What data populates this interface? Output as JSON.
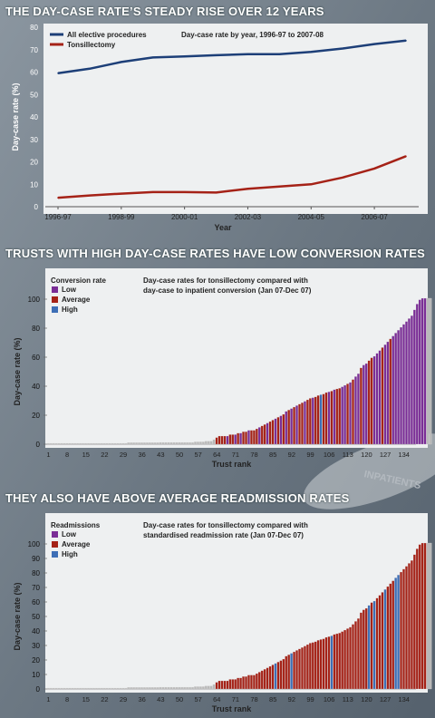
{
  "headings": {
    "h1": "THE DAY-CASE RATE’S STEADY RISE OVER 12 YEARS",
    "h2": "TRUSTS WITH HIGH DAY-CASE RATES HAVE LOW CONVERSION RATES",
    "h3": "THEY ALSO HAVE ABOVE AVERAGE READMISSION RATES"
  },
  "watermark_text": "INPATIENTS",
  "colors": {
    "background": "#6f7b86",
    "panel": "#eef0f1",
    "heading": "#ffffff",
    "navy": "#1d3f78",
    "red": "#a52217",
    "purple": "#7a2d96",
    "blue": "#3d6eb6",
    "gray_bar": "#b9b9b9"
  },
  "chart_data": [
    {
      "type": "line",
      "subtitle": "Day-case rate by year, 1996-97 to 2007-08",
      "xlabel": "Year",
      "ylabel": "Day-case rate (%)",
      "ylim": [
        0,
        80
      ],
      "yticks": [
        0,
        10,
        20,
        30,
        40,
        50,
        60,
        70,
        80
      ],
      "xtick_labels": [
        "1996-97",
        "1998-99",
        "2000-01",
        "2002-03",
        "2004-05",
        "2006-07"
      ],
      "x": [
        0,
        1,
        2,
        3,
        4,
        5,
        6,
        7,
        8,
        9,
        10,
        11
      ],
      "grid": false,
      "legend_position": "top-left",
      "series": [
        {
          "name": "All elective procedures",
          "color": "#1d3f78",
          "values": [
            59.5,
            61.5,
            64.5,
            66.5,
            67,
            67.5,
            68,
            68,
            69,
            70.5,
            72.5,
            74
          ]
        },
        {
          "name": "Tonsillectomy",
          "color": "#a52217",
          "values": [
            4,
            5,
            5.8,
            6.5,
            6.5,
            6.3,
            8,
            9,
            10,
            13,
            17,
            22.5
          ]
        }
      ]
    },
    {
      "type": "bar",
      "subtitle_lines": [
        "Day-case rates for tonsillectomy compared with",
        "day-case to inpatient conversion (Jan 07-Dec 07)"
      ],
      "legend_title": "Conversion rate",
      "legend_position": "top-left",
      "legend": [
        {
          "label": "Low",
          "color": "#7a2d96"
        },
        {
          "label": "Average",
          "color": "#a52217"
        },
        {
          "label": "High",
          "color": "#3d6eb6"
        }
      ],
      "xlabel": "Trust rank",
      "ylabel": "Day-case rate (%)",
      "ylim": [
        0,
        100
      ],
      "yticks": [
        0,
        20,
        40,
        60,
        80,
        100
      ],
      "xtick_labels": [
        "1",
        "8",
        "15",
        "22",
        "29",
        "36",
        "43",
        "50",
        "57",
        "64",
        "71",
        "78",
        "85",
        "92",
        "99",
        "106",
        "113",
        "120",
        "127",
        "134"
      ],
      "n_bars": 138,
      "values": [
        0,
        0,
        0,
        0,
        0,
        0,
        0,
        0,
        0,
        0,
        0,
        0,
        0,
        0,
        0,
        0,
        0,
        0,
        0,
        0,
        0,
        0,
        0,
        0,
        0,
        0,
        0,
        0,
        0,
        0,
        0.5,
        0.5,
        0.5,
        0.5,
        0.5,
        0.5,
        0.5,
        0.5,
        0.5,
        0.5,
        0.5,
        0.5,
        0.6,
        0.6,
        0.6,
        0.6,
        0.6,
        0.6,
        0.6,
        0.6,
        0.6,
        0.6,
        0.6,
        0.6,
        0.6,
        1,
        1,
        1,
        1,
        1.5,
        1.5,
        1.5,
        2.5,
        4,
        5,
        5,
        5,
        5,
        6,
        6,
        6,
        7,
        7,
        8,
        8,
        9,
        9,
        9,
        10,
        11,
        12,
        13,
        14,
        15,
        16,
        17,
        18,
        19,
        20,
        22,
        23,
        24,
        25,
        26,
        27,
        28,
        29,
        30,
        31,
        31.5,
        32,
        33,
        33.5,
        34,
        35,
        35.5,
        36,
        37,
        37.5,
        38,
        39,
        40,
        41,
        42,
        44,
        46,
        48,
        52,
        54,
        55,
        57,
        59,
        60,
        62,
        64,
        66,
        68,
        70,
        72,
        74,
        76,
        78,
        80,
        82,
        84,
        86,
        88,
        92,
        96,
        99,
        100,
        100,
        100,
        100
      ],
      "categories_colors": [
        "gray",
        "gray",
        "gray",
        "gray",
        "gray",
        "gray",
        "gray",
        "gray",
        "gray",
        "gray",
        "gray",
        "gray",
        "gray",
        "gray",
        "gray",
        "gray",
        "gray",
        "gray",
        "gray",
        "gray",
        "gray",
        "gray",
        "gray",
        "gray",
        "gray",
        "gray",
        "gray",
        "gray",
        "gray",
        "gray",
        "gray",
        "gray",
        "gray",
        "gray",
        "gray",
        "gray",
        "gray",
        "gray",
        "gray",
        "gray",
        "gray",
        "gray",
        "gray",
        "gray",
        "gray",
        "gray",
        "gray",
        "gray",
        "gray",
        "gray",
        "gray",
        "gray",
        "gray",
        "gray",
        "gray",
        "gray",
        "gray",
        "gray",
        "gray",
        "gray",
        "gray",
        "gray",
        "gray",
        "red",
        "red",
        "red",
        "red",
        "purple",
        "red",
        "red",
        "purple",
        "red",
        "purple",
        "red",
        "red",
        "purple",
        "red",
        "red",
        "red",
        "purple",
        "red",
        "red",
        "purple",
        "red",
        "red",
        "purple",
        "red",
        "purple",
        "red",
        "purple",
        "red",
        "purple",
        "red",
        "purple",
        "red",
        "red",
        "purple",
        "red",
        "red",
        "purple",
        "red",
        "red",
        "blue",
        "red",
        "red",
        "purple",
        "red",
        "purple",
        "red",
        "red",
        "purple",
        "purple",
        "red",
        "purple",
        "red",
        "purple",
        "purple",
        "red",
        "purple",
        "purple",
        "red",
        "red",
        "purple",
        "purple",
        "purple",
        "red",
        "purple",
        "purple",
        "red",
        "purple",
        "purple",
        "purple",
        "purple",
        "purple",
        "purple",
        "purple",
        "purple",
        "purple",
        "purple",
        "purple",
        "purple",
        "purple"
      ]
    },
    {
      "type": "bar",
      "subtitle_lines": [
        "Day-case rates for tonsillectomy compared with",
        "standardised readmission rate (Jan 07-Dec 07)"
      ],
      "legend_title": "Readmissions",
      "legend_position": "top-left",
      "legend": [
        {
          "label": "Low",
          "color": "#7a2d96"
        },
        {
          "label": "Average",
          "color": "#a52217"
        },
        {
          "label": "High",
          "color": "#3d6eb6"
        }
      ],
      "xlabel": "Trust rank",
      "ylabel": "Day-case rate (%)",
      "ylim": [
        0,
        100
      ],
      "yticks": [
        0,
        10,
        20,
        30,
        40,
        50,
        60,
        70,
        80,
        90,
        100
      ],
      "xtick_labels": [
        "1",
        "8",
        "15",
        "22",
        "29",
        "36",
        "43",
        "50",
        "57",
        "64",
        "71",
        "78",
        "85",
        "92",
        "99",
        "106",
        "113",
        "120",
        "127",
        "134"
      ],
      "n_bars": 138,
      "values": [
        0,
        0,
        0,
        0,
        0,
        0,
        0,
        0,
        0,
        0,
        0,
        0,
        0,
        0,
        0,
        0,
        0,
        0,
        0,
        0,
        0,
        0,
        0,
        0,
        0,
        0,
        0,
        0,
        0,
        0,
        0.5,
        0.5,
        0.5,
        0.5,
        0.5,
        0.5,
        0.5,
        0.5,
        0.5,
        0.5,
        0.5,
        0.5,
        0.6,
        0.6,
        0.6,
        0.6,
        0.6,
        0.6,
        0.6,
        0.6,
        0.6,
        0.6,
        0.6,
        0.6,
        0.6,
        1,
        1,
        1,
        1,
        1.5,
        1.5,
        1.5,
        2.5,
        4,
        5,
        5,
        5,
        5,
        6,
        6,
        6,
        7,
        7,
        8,
        8,
        9,
        9,
        9,
        10,
        11,
        12,
        13,
        14,
        15,
        16,
        17,
        18,
        19,
        20,
        22,
        23,
        24,
        25,
        26,
        27,
        28,
        29,
        30,
        31,
        31.5,
        32,
        33,
        33.5,
        34,
        35,
        35.5,
        36,
        37,
        37.5,
        38,
        39,
        40,
        41,
        42,
        44,
        46,
        48,
        52,
        54,
        55,
        57,
        59,
        60,
        62,
        64,
        66,
        68,
        70,
        72,
        74,
        76,
        78,
        80,
        82,
        84,
        86,
        88,
        92,
        96,
        99,
        100,
        100,
        100,
        100
      ],
      "categories_colors": [
        "gray",
        "gray",
        "gray",
        "gray",
        "gray",
        "gray",
        "gray",
        "gray",
        "gray",
        "gray",
        "gray",
        "gray",
        "gray",
        "gray",
        "gray",
        "gray",
        "gray",
        "gray",
        "gray",
        "gray",
        "gray",
        "gray",
        "gray",
        "gray",
        "gray",
        "gray",
        "gray",
        "gray",
        "gray",
        "gray",
        "gray",
        "gray",
        "gray",
        "gray",
        "gray",
        "gray",
        "gray",
        "gray",
        "gray",
        "gray",
        "gray",
        "gray",
        "gray",
        "gray",
        "gray",
        "gray",
        "gray",
        "gray",
        "gray",
        "gray",
        "gray",
        "gray",
        "gray",
        "gray",
        "gray",
        "gray",
        "gray",
        "gray",
        "gray",
        "gray",
        "gray",
        "gray",
        "gray",
        "red",
        "red",
        "red",
        "red",
        "red",
        "red",
        "red",
        "red",
        "red",
        "red",
        "red",
        "red",
        "red",
        "red",
        "red",
        "red",
        "red",
        "red",
        "red",
        "red",
        "red",
        "red",
        "blue",
        "red",
        "red",
        "red",
        "red",
        "red",
        "blue",
        "red",
        "red",
        "red",
        "red",
        "red",
        "red",
        "red",
        "red",
        "red",
        "red",
        "red",
        "red",
        "red",
        "red",
        "blue",
        "red",
        "red",
        "red",
        "red",
        "red",
        "red",
        "red",
        "red",
        "red",
        "red",
        "red",
        "red",
        "red",
        "blue",
        "red",
        "blue",
        "red",
        "red",
        "red",
        "blue",
        "red",
        "red",
        "red",
        "blue",
        "blue",
        "red",
        "red",
        "red",
        "red",
        "red",
        "red",
        "red",
        "red",
        "red",
        "red"
      ]
    }
  ]
}
